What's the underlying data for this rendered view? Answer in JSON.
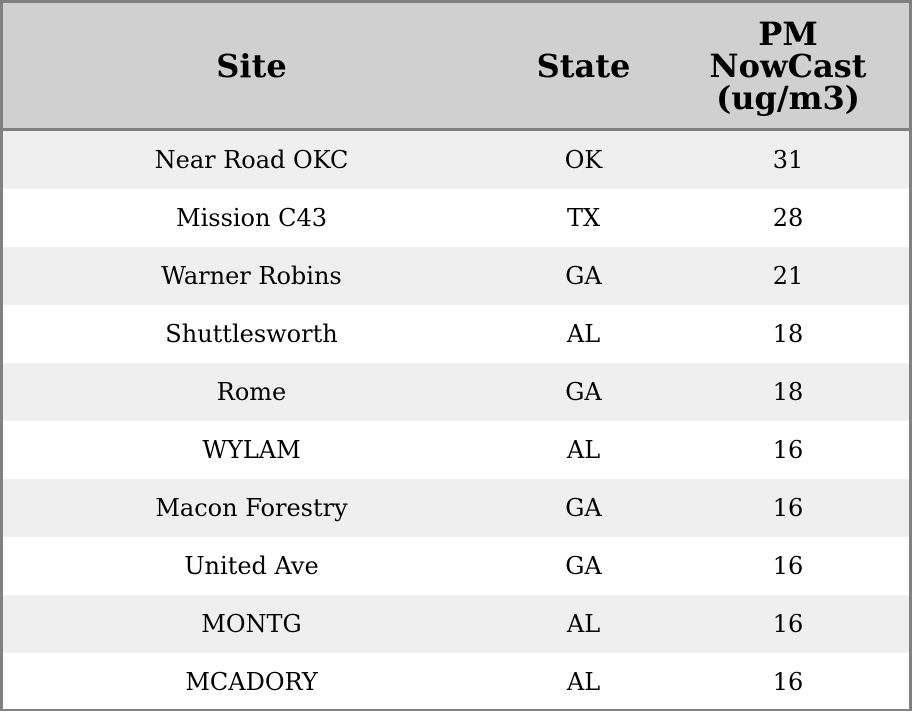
{
  "columns": [
    "Site",
    "State",
    "PM NowCast (ug/m3)"
  ],
  "header_lines": {
    "pm": [
      "PM",
      "NowCast",
      "(ug/m3)"
    ]
  },
  "rows": [
    {
      "site": "Near Road OKC",
      "state": "OK",
      "pm": "31"
    },
    {
      "site": "Mission C43",
      "state": "TX",
      "pm": "28"
    },
    {
      "site": "Warner Robins",
      "state": "GA",
      "pm": "21"
    },
    {
      "site": "Shuttlesworth",
      "state": "AL",
      "pm": "18"
    },
    {
      "site": "Rome",
      "state": "GA",
      "pm": "18"
    },
    {
      "site": "WYLAM",
      "state": "AL",
      "pm": "16"
    },
    {
      "site": "Macon Forestry",
      "state": "GA",
      "pm": "16"
    },
    {
      "site": "United Ave",
      "state": "GA",
      "pm": "16"
    },
    {
      "site": "MONTG",
      "state": "AL",
      "pm": "16"
    },
    {
      "site": "MCADORY",
      "state": "AL",
      "pm": "16"
    }
  ],
  "colors": {
    "header_bg": "#d0d0d0",
    "stripe_bg": "#efefef",
    "border": "#808080"
  }
}
